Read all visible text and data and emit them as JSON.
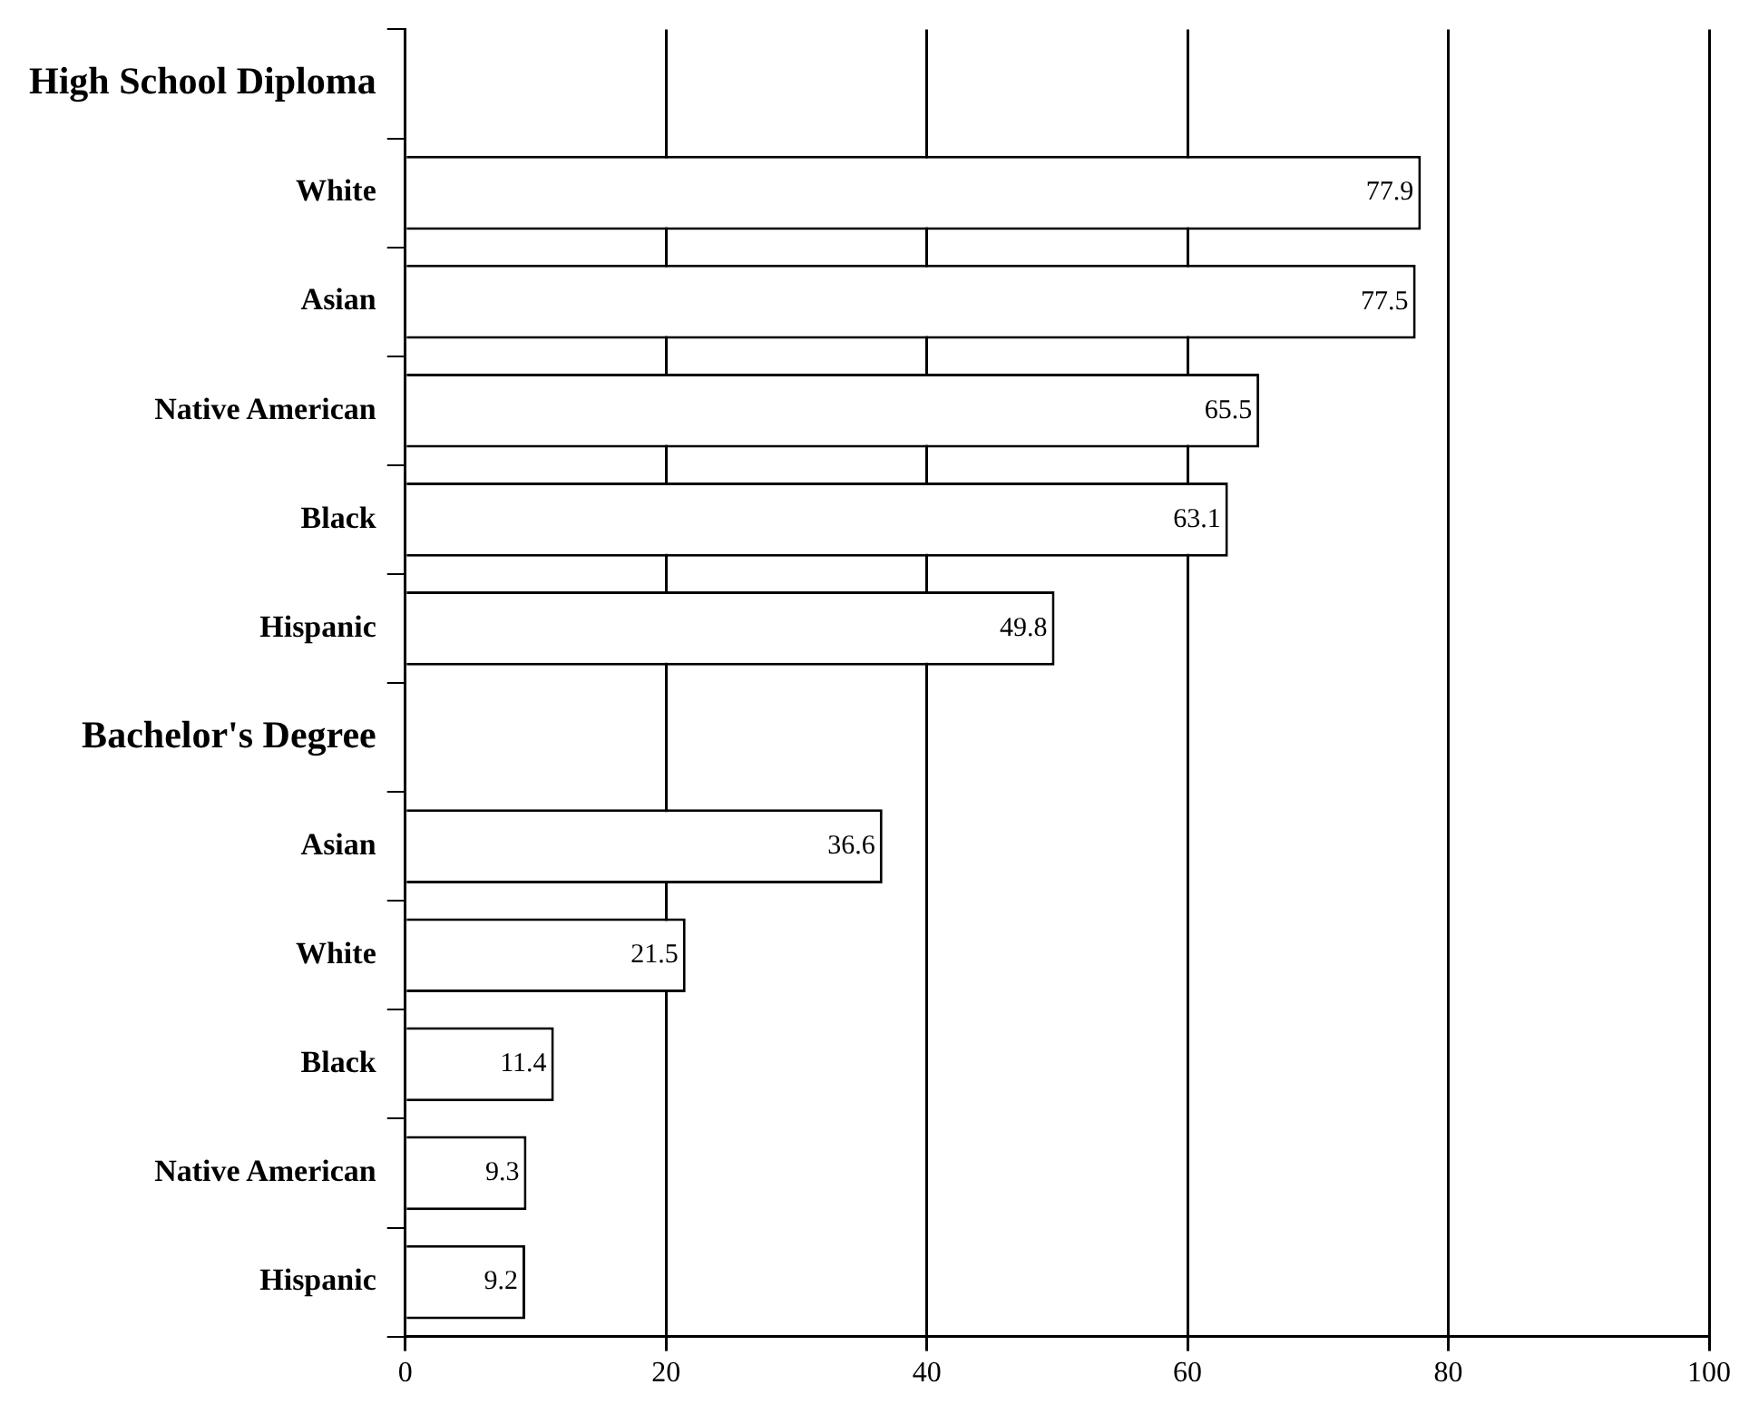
{
  "chart_data": {
    "type": "bar",
    "orientation": "horizontal",
    "categories": [
      "High School Diploma",
      "White",
      "Asian",
      "Native American",
      "Black",
      "Hispanic",
      "Bachelor's Degree",
      "Asian",
      "White",
      "Black",
      "Native American",
      "Hispanic"
    ],
    "values": [
      null,
      77.9,
      77.5,
      65.5,
      63.1,
      49.8,
      null,
      36.6,
      21.5,
      11.4,
      9.3,
      9.2
    ],
    "color": "#ffffff",
    "xlim": [
      0,
      100
    ],
    "xticks": [
      0,
      20,
      40,
      60,
      80,
      100
    ],
    "grid": "x",
    "data_labels": true,
    "legend": false
  }
}
